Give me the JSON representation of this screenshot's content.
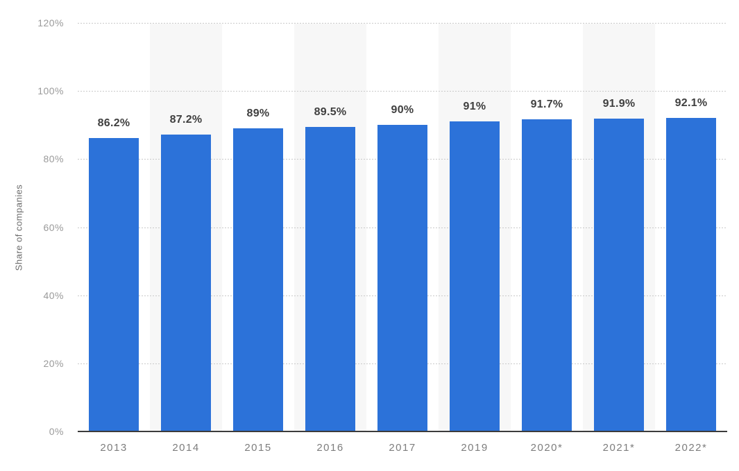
{
  "chart_data": {
    "type": "bar",
    "ylabel": "Share of companies",
    "xlabel": "",
    "categories": [
      "2013",
      "2014",
      "2015",
      "2016",
      "2017",
      "2019",
      "2020*",
      "2021*",
      "2022*"
    ],
    "values": [
      86.2,
      87.2,
      89,
      89.5,
      90,
      91,
      91.7,
      91.9,
      92.1
    ],
    "value_labels": [
      "86.2%",
      "87.2%",
      "89%",
      "89.5%",
      "90%",
      "91%",
      "91.7%",
      "91.9%",
      "92.1%"
    ],
    "ylim": [
      0,
      120
    ],
    "ytick_values": [
      0,
      20,
      40,
      60,
      80,
      100,
      120
    ],
    "ytick_labels": [
      "0%",
      "20%",
      "40%",
      "60%",
      "80%",
      "100%",
      "120%"
    ],
    "grid": "horizontal-dotted",
    "legend_position": "none",
    "background_bands": "alternating-columns",
    "colors": {
      "bar": "#2c72d9",
      "band": "#f7f7f7",
      "gridline": "#c9c9c9",
      "axis_line": "#3c3c3c",
      "ytick_label": "#9a9a9a",
      "xtick_label": "#7d7d7d",
      "value_label": "#3f3f3f",
      "axis_title": "#6b6b6b",
      "background": "#ffffff"
    }
  }
}
